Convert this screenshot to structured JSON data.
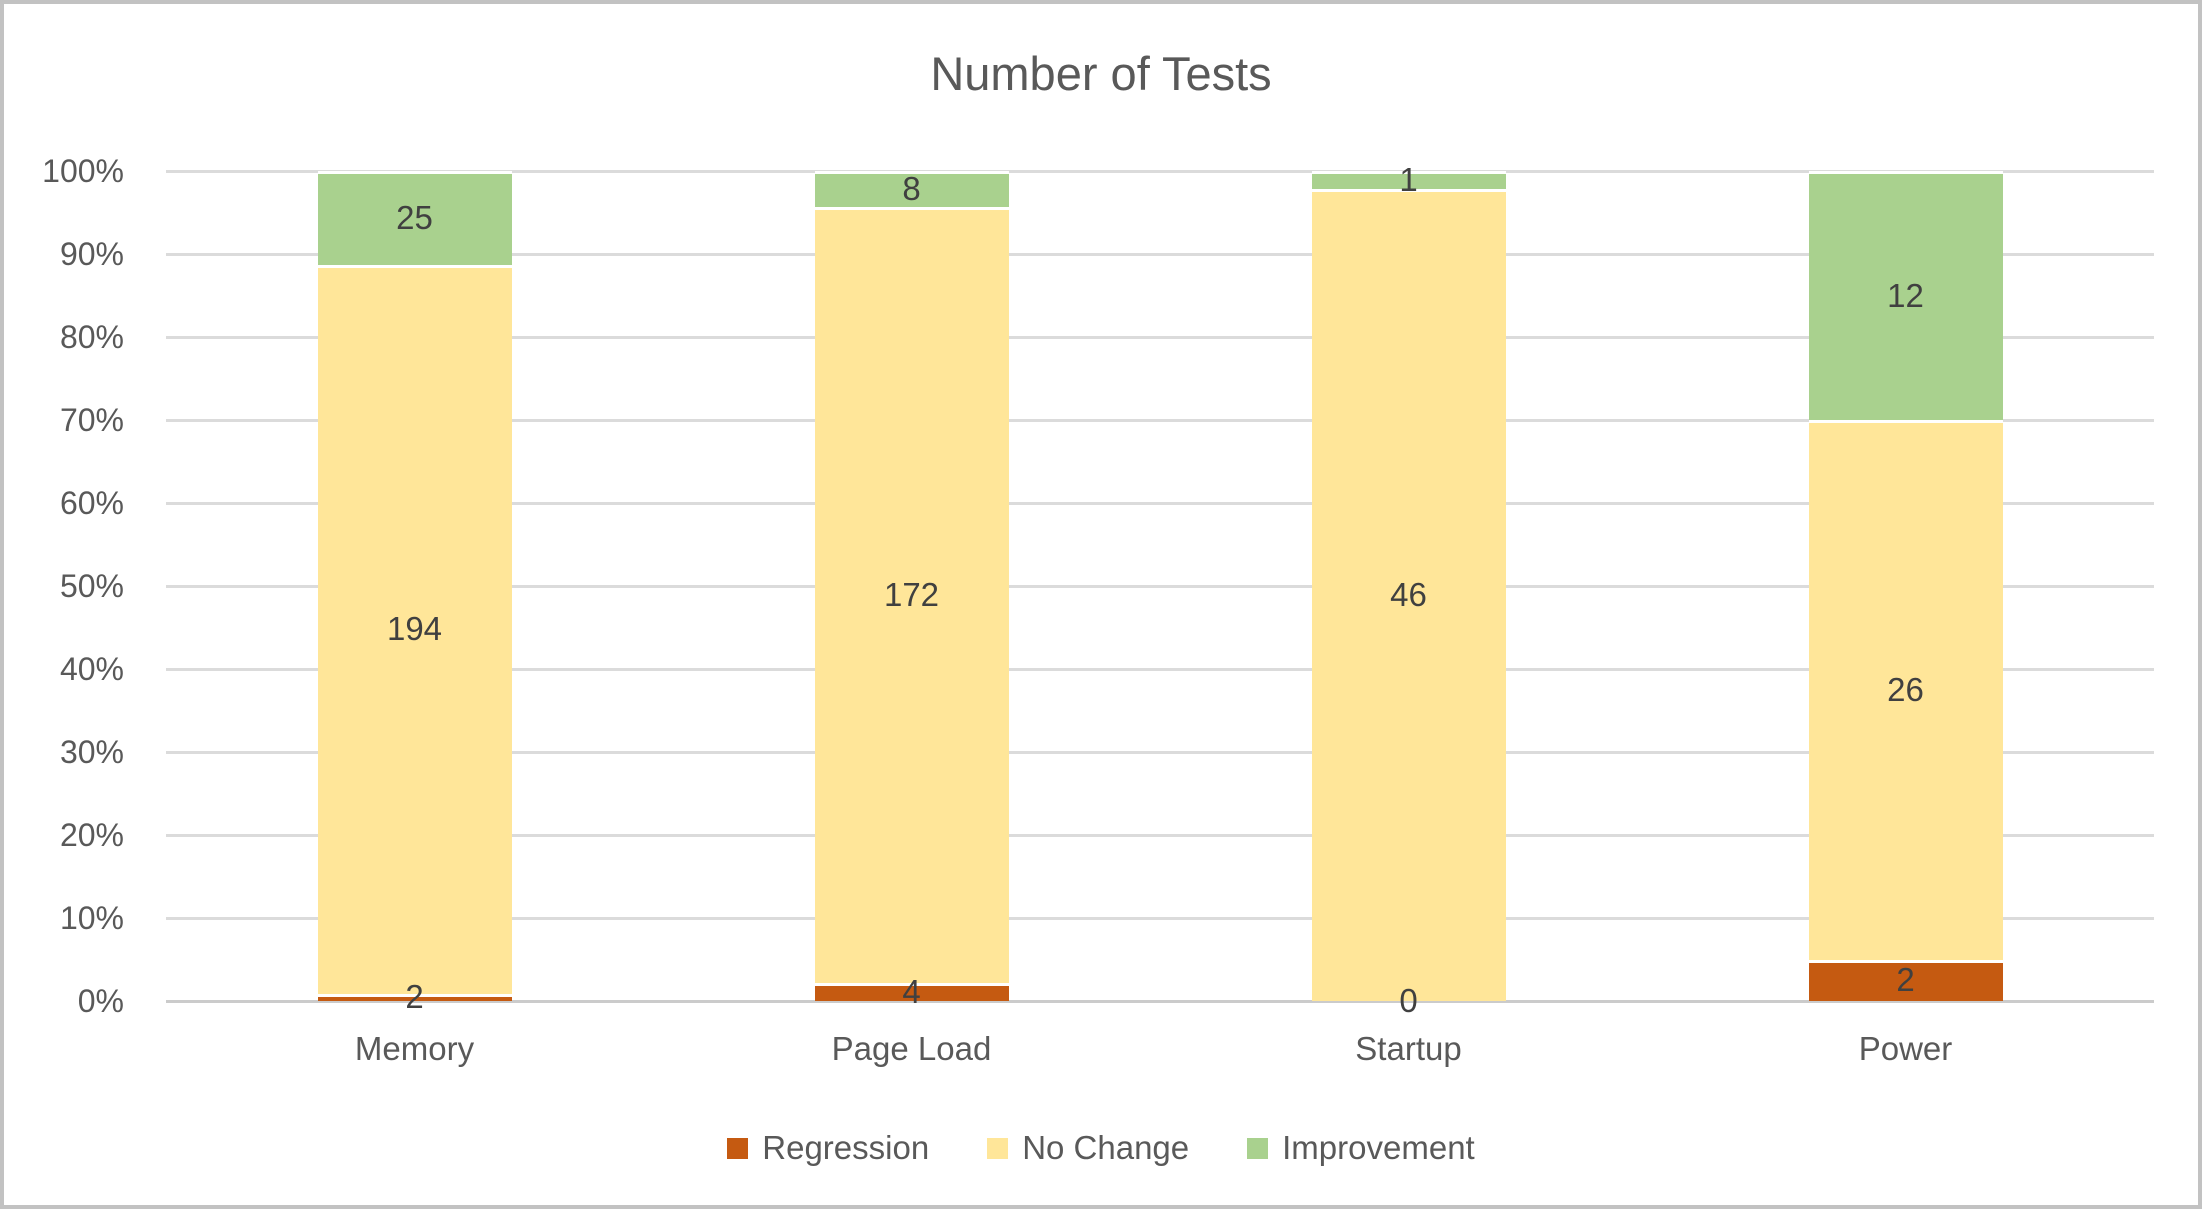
{
  "frame": {
    "background": "#ffffff",
    "border_color": "#c2c2c2"
  },
  "chart_data": {
    "type": "bar",
    "subtype": "stacked-100-percent-column",
    "title": "Number of Tests",
    "categories": [
      "Memory",
      "Page Load",
      "Startup",
      "Power"
    ],
    "series": [
      {
        "name": "Regression",
        "color": "#c55a11",
        "values": [
          2,
          4,
          0,
          2
        ]
      },
      {
        "name": "No Change",
        "color": "#ffe699",
        "values": [
          194,
          172,
          46,
          26
        ]
      },
      {
        "name": "Improvement",
        "color": "#a9d18e",
        "values": [
          25,
          8,
          1,
          12
        ]
      }
    ],
    "category_totals": [
      221,
      184,
      47,
      40
    ],
    "data_labels_shown": true,
    "xlabel": "",
    "ylabel": "",
    "y_axis": {
      "min": 0,
      "max": 1,
      "tick_labels": [
        "0%",
        "10%",
        "20%",
        "30%",
        "40%",
        "50%",
        "60%",
        "70%",
        "80%",
        "90%",
        "100%"
      ]
    },
    "grid": true,
    "legend_position": "bottom",
    "colors": {
      "gridline": "#dbdbdb",
      "axis_line": "#cbcbcb",
      "tick_mark": "#c6c6c6",
      "title_text": "#595959",
      "axis_text": "#595959",
      "category_text": "#595959",
      "legend_text": "#595959",
      "data_label_text": "#404040",
      "segment_border": "#ffffff"
    }
  }
}
